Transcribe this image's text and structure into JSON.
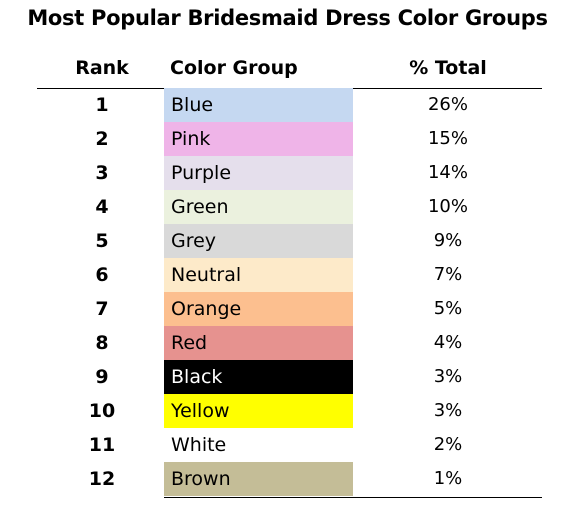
{
  "chart_data": {
    "type": "table",
    "title": "Most Popular Bridesmaid Dress Color Groups",
    "columns": [
      "Rank",
      "Color Group",
      "% Total"
    ],
    "rows": [
      {
        "rank": "1",
        "color_group": "Blue",
        "total": "26%",
        "value": 26,
        "swatch": "#c5d8f1",
        "text_color": "#000000"
      },
      {
        "rank": "2",
        "color_group": "Pink",
        "total": "15%",
        "value": 15,
        "swatch": "#efb4e8",
        "text_color": "#000000"
      },
      {
        "rank": "3",
        "color_group": "Purple",
        "total": "14%",
        "value": 14,
        "swatch": "#e5dfec",
        "text_color": "#000000"
      },
      {
        "rank": "4",
        "color_group": "Green",
        "total": "10%",
        "value": 10,
        "swatch": "#ebf1de",
        "text_color": "#000000"
      },
      {
        "rank": "5",
        "color_group": "Grey",
        "total": "9%",
        "value": 9,
        "swatch": "#d9d9d9",
        "text_color": "#000000"
      },
      {
        "rank": "6",
        "color_group": "Neutral",
        "total": "7%",
        "value": 7,
        "swatch": "#fdeac9",
        "text_color": "#000000"
      },
      {
        "rank": "7",
        "color_group": "Orange",
        "total": "5%",
        "value": 5,
        "swatch": "#fcbf8f",
        "text_color": "#000000"
      },
      {
        "rank": "8",
        "color_group": "Red",
        "total": "4%",
        "value": 4,
        "swatch": "#e6928f",
        "text_color": "#000000"
      },
      {
        "rank": "9",
        "color_group": "Black",
        "total": "3%",
        "value": 3,
        "swatch": "#000000",
        "text_color": "#ffffff"
      },
      {
        "rank": "10",
        "color_group": "Yellow",
        "total": "3%",
        "value": 3,
        "swatch": "#ffff00",
        "text_color": "#000000"
      },
      {
        "rank": "11",
        "color_group": "White",
        "total": "2%",
        "value": 2,
        "swatch": "#ffffff",
        "text_color": "#000000"
      },
      {
        "rank": "12",
        "color_group": "Brown",
        "total": "1%",
        "value": 1,
        "swatch": "#c4bd97",
        "text_color": "#000000"
      }
    ]
  }
}
